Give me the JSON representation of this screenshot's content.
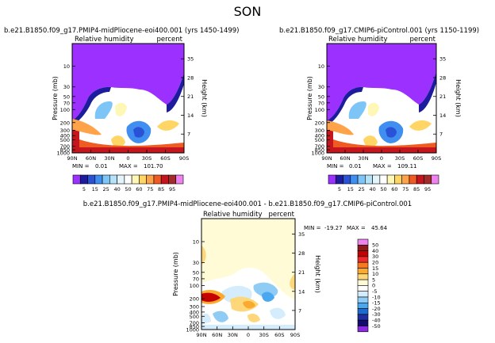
{
  "page_title": "SON",
  "chart_data": [
    {
      "type": "heatmap",
      "title": "b.e21.B1850.f09_g17.PMIP4-midPliocene-eoi400.001 (yrs 1450-1499)",
      "variable_label": "Relative humidity",
      "units_label": "percent",
      "ylabel": "Pressure (mb)",
      "ylabel_right": "Height (km)",
      "x_ticks": [
        "90N",
        "60N",
        "30N",
        "0",
        "30S",
        "60S",
        "90S"
      ],
      "y_ticks": [
        "10",
        "30",
        "50",
        "70",
        "100",
        "200",
        "300",
        "400",
        "500",
        "700",
        "850",
        "1000"
      ],
      "right_ticks": [
        "35",
        "28",
        "21",
        "14",
        "7"
      ],
      "min_label": "MIN =",
      "min_value": "0.01",
      "max_label": "MAX =",
      "max_value": "101.70",
      "colorbar_labels": [
        "5",
        "15",
        "25",
        "40",
        "50",
        "60",
        "75",
        "85",
        "95"
      ]
    },
    {
      "type": "heatmap",
      "title": "b.e21.B1850.f09_g17.CMIP6-piControl.001 (yrs 1150-1199)",
      "variable_label": "Relative humidity",
      "units_label": "percent",
      "ylabel": "Pressure (mb)",
      "ylabel_right": "Height (km)",
      "x_ticks": [
        "90N",
        "60N",
        "30N",
        "0",
        "30S",
        "60S",
        "90S"
      ],
      "y_ticks": [
        "10",
        "30",
        "50",
        "70",
        "100",
        "200",
        "300",
        "400",
        "500",
        "700",
        "850",
        "1000"
      ],
      "right_ticks": [
        "35",
        "28",
        "21",
        "14",
        "7"
      ],
      "min_label": "MIN =",
      "min_value": "0.01",
      "max_label": "MAX =",
      "max_value": "109.11",
      "colorbar_labels": [
        "5",
        "15",
        "25",
        "40",
        "50",
        "60",
        "75",
        "85",
        "95"
      ]
    },
    {
      "type": "heatmap",
      "title": "b.e21.B1850.f09_g17.PMIP4-midPliocene-eoi400.001 - b.e21.B1850.f09_g17.CMIP6-piControl.001",
      "variable_label": "Relative humidity",
      "units_label": "percent",
      "ylabel": "Pressure (mb)",
      "ylabel_right": "Height (km)",
      "x_ticks": [
        "90N",
        "60N",
        "30N",
        "0",
        "30S",
        "60S",
        "90S"
      ],
      "y_ticks": [
        "10",
        "30",
        "50",
        "70",
        "100",
        "200",
        "300",
        "400",
        "500",
        "700",
        "850",
        "1000"
      ],
      "right_ticks": [
        "35",
        "28",
        "21",
        "14",
        "7"
      ],
      "min_label": "MIN =",
      "min_value": "-19.27",
      "max_label": "MAX =",
      "max_value": "45.64",
      "colorbar_labels": [
        "50",
        "40",
        "30",
        "20",
        "15",
        "10",
        "5",
        "0",
        "-5",
        "-10",
        "-15",
        "-20",
        "-30",
        "-40",
        "-50"
      ]
    }
  ],
  "colors": {
    "abs_scale": [
      "#9b30ff",
      "#1c1c9c",
      "#2a52d6",
      "#3f8ef0",
      "#7dc4f7",
      "#b4e2f8",
      "#e4f4fb",
      "#ffffff",
      "#fff7b5",
      "#ffd666",
      "#ffa34a",
      "#f05a23",
      "#c4161c",
      "#a52a2a",
      "#ee82ee"
    ],
    "diff_scale": [
      "#ee82ee",
      "#8b1a1a",
      "#c40000",
      "#ef2a2a",
      "#f77a20",
      "#fbaa30",
      "#fed77a",
      "#fffbd6",
      "#ffffff",
      "#d4ecfb",
      "#8ecbf5",
      "#49a8ef",
      "#1d6ad1",
      "#1f2e9e",
      "#120b72",
      "#8a2be2"
    ]
  }
}
